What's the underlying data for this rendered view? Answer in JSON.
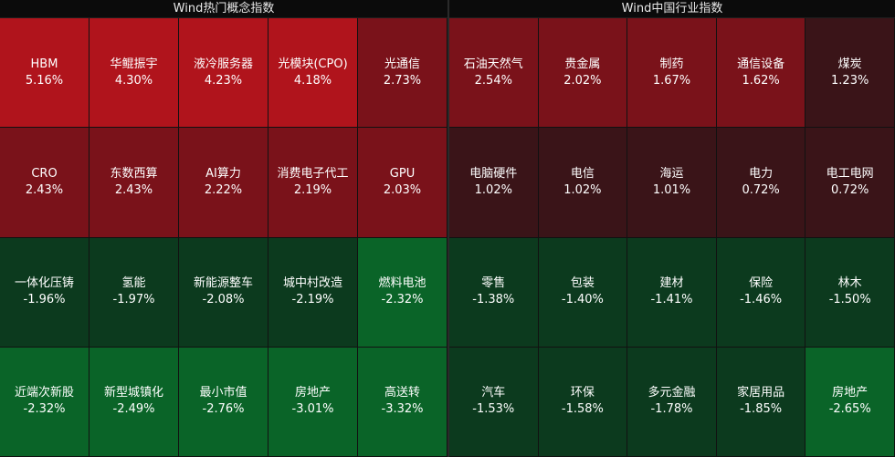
{
  "chart_data": [
    {
      "type": "heatmap",
      "title": "Wind热门概念指数",
      "cells": [
        {
          "name": "HBM",
          "value": "5.16%"
        },
        {
          "name": "华鲲振宇",
          "value": "4.30%"
        },
        {
          "name": "液冷服务器",
          "value": "4.23%"
        },
        {
          "name": "光模块(CPO)",
          "value": "4.18%"
        },
        {
          "name": "光通信",
          "value": "2.73%"
        },
        {
          "name": "CRO",
          "value": "2.43%"
        },
        {
          "name": "东数西算",
          "value": "2.43%"
        },
        {
          "name": "AI算力",
          "value": "2.22%"
        },
        {
          "name": "消费电子代工",
          "value": "2.19%"
        },
        {
          "name": "GPU",
          "value": "2.03%"
        },
        {
          "name": "一体化压铸",
          "value": "-1.96%"
        },
        {
          "name": "氢能",
          "value": "-1.97%"
        },
        {
          "name": "新能源整车",
          "value": "-2.08%"
        },
        {
          "name": "城中村改造",
          "value": "-2.19%"
        },
        {
          "name": "燃料电池",
          "value": "-2.32%"
        },
        {
          "name": "近端次新股",
          "value": "-2.32%"
        },
        {
          "name": "新型城镇化",
          "value": "-2.49%"
        },
        {
          "name": "最小市值",
          "value": "-2.76%"
        },
        {
          "name": "房地产",
          "value": "-3.01%"
        },
        {
          "name": "高送转",
          "value": "-3.32%"
        }
      ]
    },
    {
      "type": "heatmap",
      "title": "Wind中国行业指数",
      "cells": [
        {
          "name": "石油天然气",
          "value": "2.54%"
        },
        {
          "name": "贵金属",
          "value": "2.02%"
        },
        {
          "name": "制药",
          "value": "1.67%"
        },
        {
          "name": "通信设备",
          "value": "1.62%"
        },
        {
          "name": "煤炭",
          "value": "1.23%"
        },
        {
          "name": "电脑硬件",
          "value": "1.02%"
        },
        {
          "name": "电信",
          "value": "1.02%"
        },
        {
          "name": "海运",
          "value": "1.01%"
        },
        {
          "name": "电力",
          "value": "0.72%"
        },
        {
          "name": "电工电网",
          "value": "0.72%"
        },
        {
          "name": "零售",
          "value": "-1.38%"
        },
        {
          "name": "包装",
          "value": "-1.40%"
        },
        {
          "name": "建材",
          "value": "-1.41%"
        },
        {
          "name": "保险",
          "value": "-1.46%"
        },
        {
          "name": "林木",
          "value": "-1.50%"
        },
        {
          "name": "汽车",
          "value": "-1.53%"
        },
        {
          "name": "环保",
          "value": "-1.58%"
        },
        {
          "name": "多元金融",
          "value": "-1.78%"
        },
        {
          "name": "家居用品",
          "value": "-1.85%"
        },
        {
          "name": "房地产",
          "value": "-2.65%"
        }
      ]
    }
  ],
  "colors": {
    "up_strong": "#b0141c",
    "up_mid": "#7a121a",
    "up_weak": "#3a1418",
    "down_weak": "#0c3a1e",
    "down_strong": "#0a6428"
  }
}
